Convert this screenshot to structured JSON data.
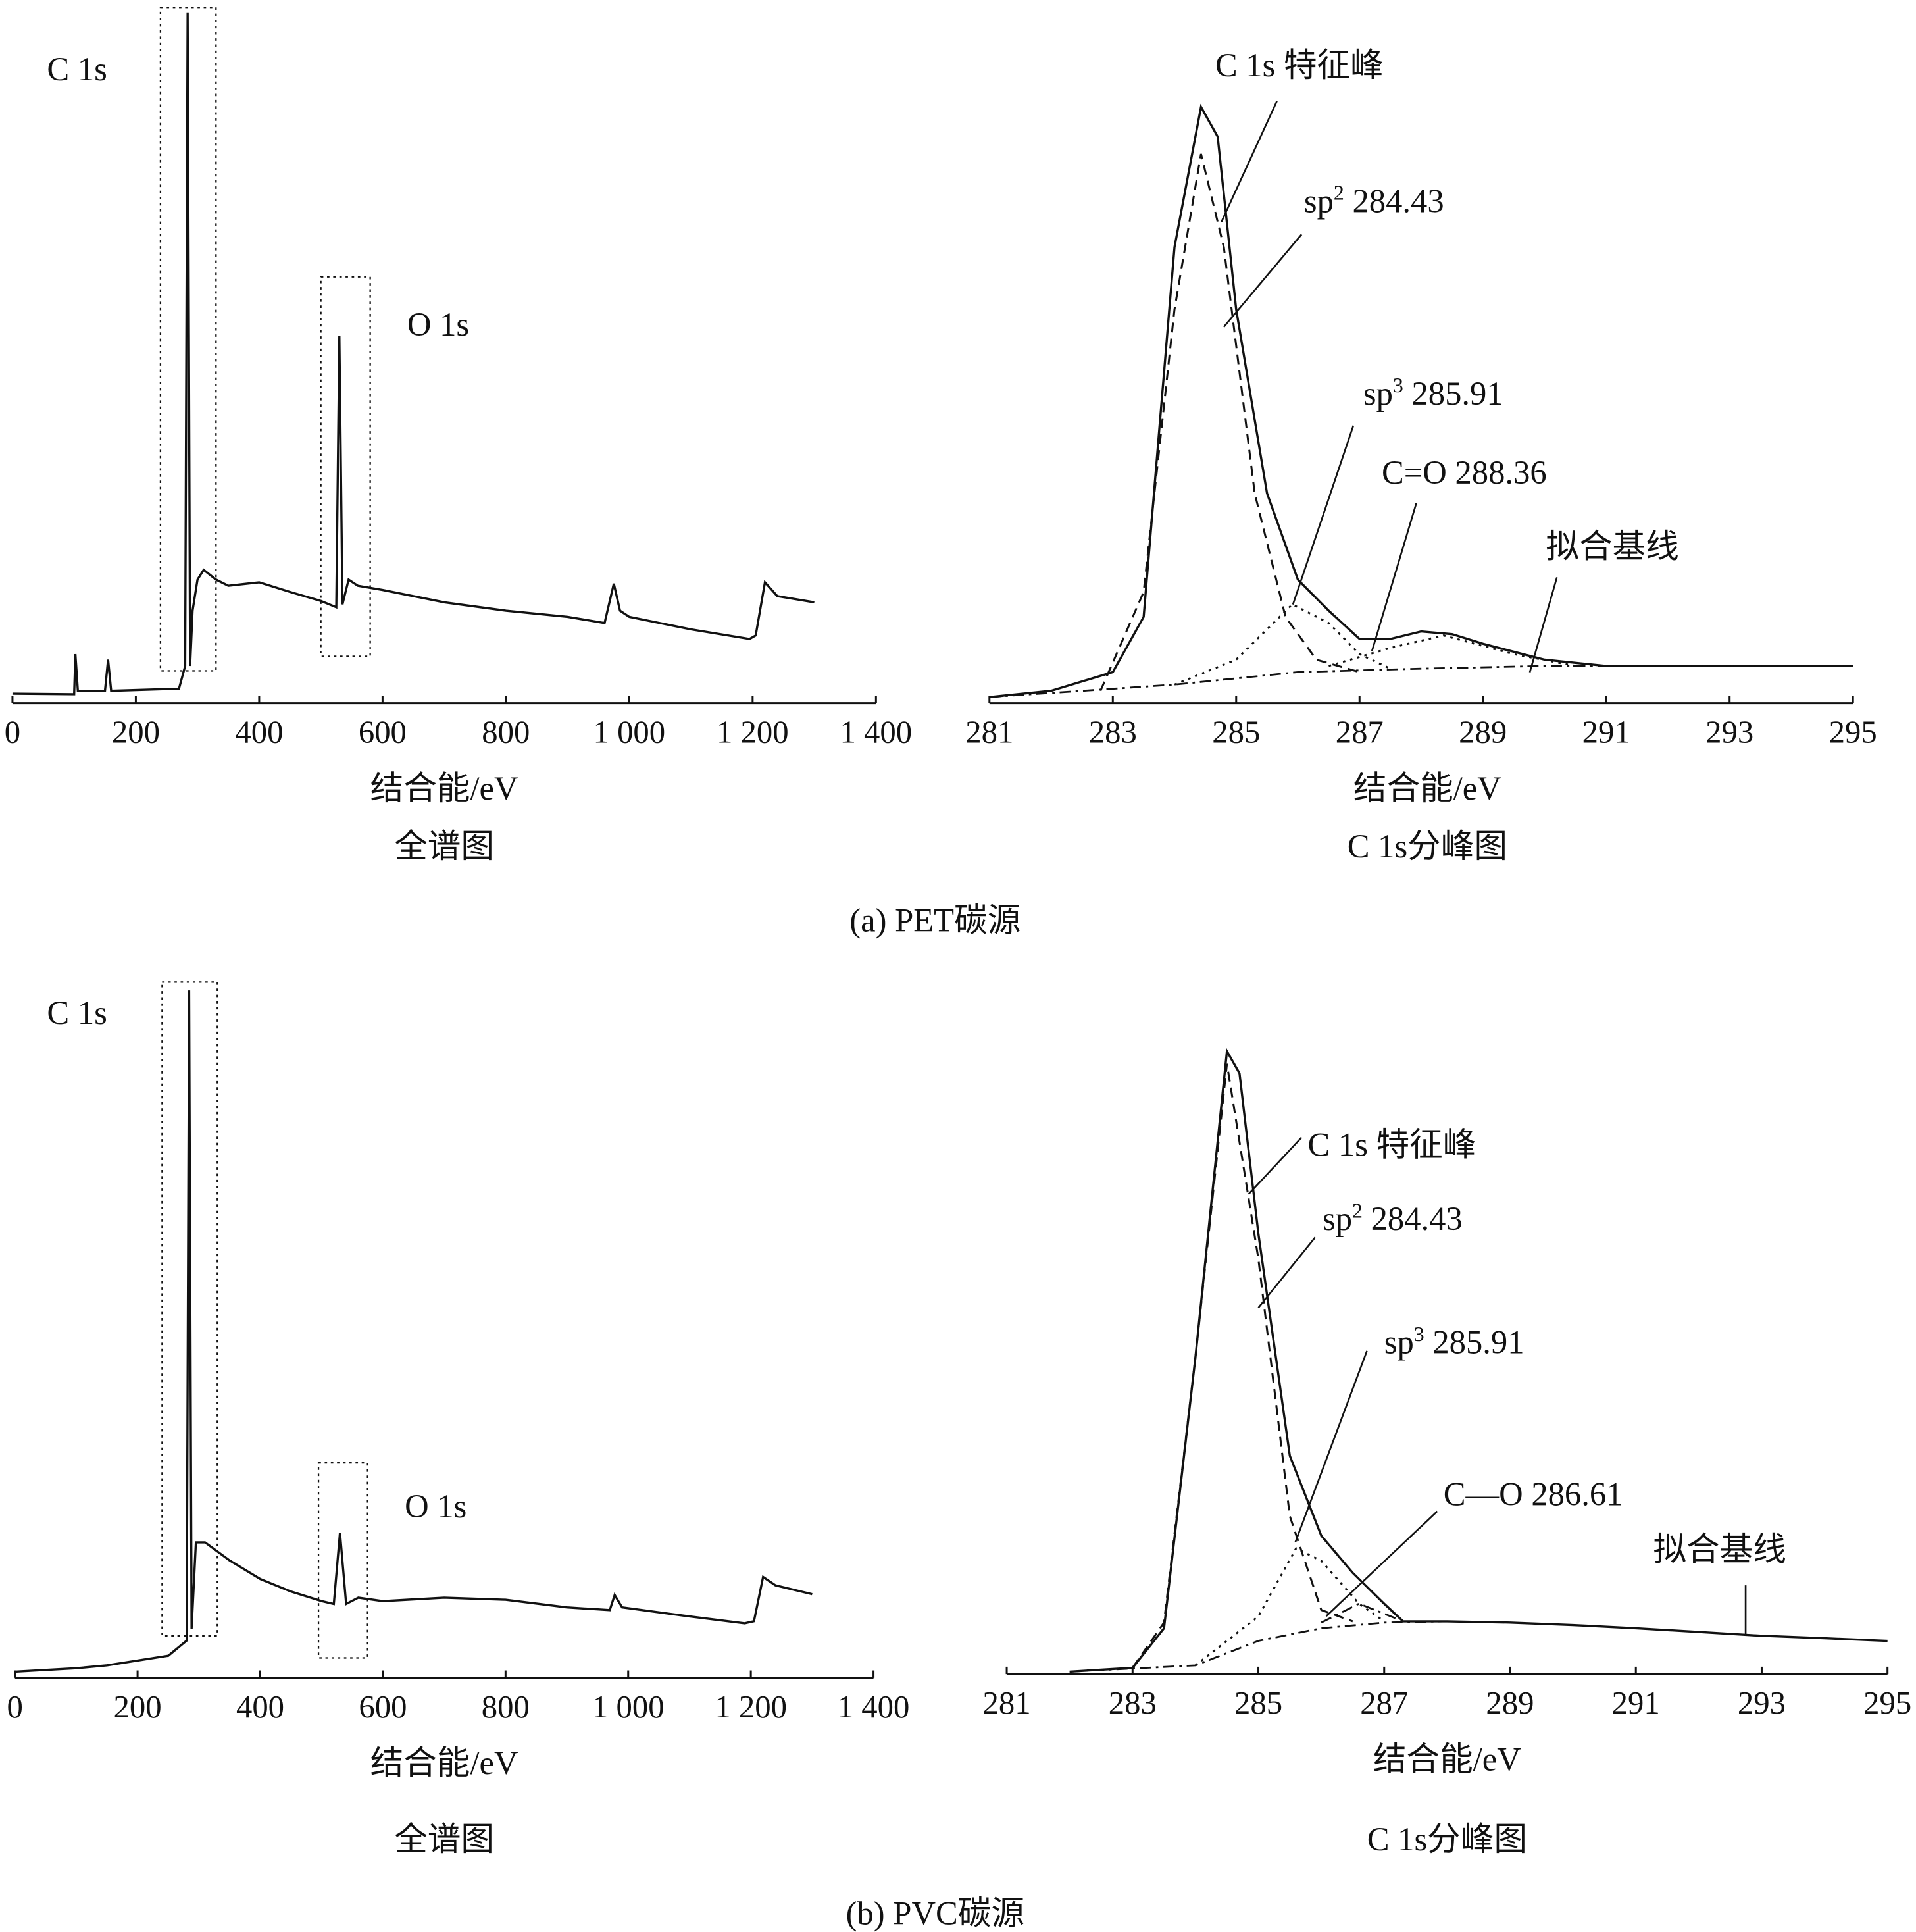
{
  "chart_data": [
    {
      "id": "a_survey",
      "type": "line",
      "title": "全谱图",
      "xlabel": "结合能/eV",
      "ylabel": "",
      "xlim": [
        0,
        1400
      ],
      "ylim": [
        0,
        100
      ],
      "xticks": [
        "0",
        "200",
        "400",
        "600",
        "800",
        "1 000",
        "1 200",
        "1 400"
      ],
      "xtick_values": [
        0,
        200,
        400,
        600,
        800,
        1000,
        1200,
        1400
      ],
      "highlight_ranges_eV": [
        {
          "label": "C 1s",
          "x": [
            240,
            330
          ],
          "y": [
            5.4,
            100
          ]
        },
        {
          "label": "O 1s",
          "x": [
            500,
            580
          ],
          "y": [
            7.5,
            61
          ]
        }
      ],
      "annotations": [
        {
          "text": "C 1s"
        },
        {
          "text": "O 1s"
        }
      ],
      "series": [
        {
          "name": "spectrum",
          "style": "solid",
          "x": [
            0,
            100,
            102,
            106,
            150,
            155,
            160,
            270,
            280,
            284,
            288,
            292,
            300,
            310,
            330,
            350,
            400,
            450,
            500,
            525,
            530,
            535,
            545,
            560,
            600,
            700,
            800,
            900,
            960,
            975,
            985,
            1000,
            1100,
            1195,
            1205,
            1220,
            1240,
            1300
          ],
          "y": [
            1.4,
            1.3,
            7.1,
            1.8,
            1.8,
            6.3,
            1.8,
            2.1,
            5.4,
            100,
            5.4,
            13.4,
            17.9,
            19.3,
            17.9,
            17,
            17.5,
            16.1,
            14.8,
            13.9,
            53.2,
            14.3,
            17.9,
            17,
            16.4,
            14.6,
            13.4,
            12.5,
            11.6,
            17.3,
            13.4,
            12.5,
            10.7,
            9.3,
            9.8,
            17.5,
            15.5,
            14.6
          ]
        }
      ]
    },
    {
      "id": "a_c1s",
      "type": "line",
      "title": "C 1s分峰图",
      "xlabel": "结合能/eV",
      "ylabel": "",
      "xlim": [
        281,
        295
      ],
      "ylim": [
        0,
        100
      ],
      "xticks": [
        "281",
        "283",
        "285",
        "287",
        "289",
        "291",
        "293",
        "295"
      ],
      "xtick_values": [
        281,
        283,
        285,
        287,
        289,
        291,
        293,
        295
      ],
      "annotations": [
        {
          "text": "C 1s  特征峰"
        },
        {
          "prefix": "sp",
          "sup": "2",
          "value": " 284.43"
        },
        {
          "prefix": "sp",
          "sup": "3",
          "value": " 285.91"
        },
        {
          "text": "C=O 288.36"
        },
        {
          "text": "拟合基线"
        }
      ],
      "series": [
        {
          "name": "C 1s 特征峰",
          "style": "solid",
          "x": [
            281,
            282,
            283,
            283.5,
            284,
            284.43,
            284.7,
            285,
            285.5,
            286,
            286.5,
            287,
            287.5,
            288,
            288.5,
            289,
            290,
            291,
            295
          ],
          "y": [
            0.9,
            1.8,
            4.5,
            12.5,
            66,
            86.3,
            82,
            57,
            30.4,
            17.9,
            13.4,
            9.3,
            9.3,
            10.4,
            10,
            8.6,
            6.3,
            5.4,
            5.4
          ]
        },
        {
          "name": "sp2 284.43",
          "style": "dash",
          "x": [
            282.8,
            283.5,
            284,
            284.43,
            284.8,
            285.3,
            285.8,
            286.3,
            287
          ],
          "y": [
            1.8,
            16.1,
            57,
            79.5,
            66,
            30.4,
            12.5,
            6.3,
            4.5
          ]
        },
        {
          "name": "sp3 285.91",
          "style": "dot",
          "x": [
            284,
            285,
            285.5,
            285.91,
            286.5,
            287,
            287.5
          ],
          "y": [
            2.7,
            6.3,
            10.7,
            14.3,
            11.6,
            7.1,
            5
          ]
        },
        {
          "name": "C=O 288.36",
          "style": "dot",
          "x": [
            286.5,
            287.5,
            288.36,
            289.5,
            290.5
          ],
          "y": [
            5.4,
            8,
            9.8,
            7.1,
            5.4
          ]
        },
        {
          "name": "拟合基线",
          "style": "dashdot",
          "x": [
            281,
            284,
            286,
            288,
            290,
            295
          ],
          "y": [
            0.9,
            2.7,
            4.5,
            5,
            5.4,
            5.4
          ]
        }
      ]
    },
    {
      "id": "b_survey",
      "type": "line",
      "title": "全谱图",
      "xlabel": "结合能/eV",
      "ylabel": "",
      "xlim": [
        0,
        1400
      ],
      "ylim": [
        0,
        100
      ],
      "xticks": [
        "0",
        "200",
        "400",
        "600",
        "800",
        "1 000",
        "1 200",
        "1 400"
      ],
      "xtick_values": [
        0,
        200,
        400,
        600,
        800,
        1000,
        1200,
        1400
      ],
      "highlight_ranges_eV": [
        {
          "label": "C 1s",
          "x": [
            240,
            330
          ],
          "y": [
            6.8,
            100
          ]
        },
        {
          "label": "O 1s",
          "x": [
            495,
            575
          ],
          "y": [
            3.6,
            30.4
          ]
        }
      ],
      "annotations": [
        {
          "text": "C 1s"
        },
        {
          "text": "O 1s"
        }
      ],
      "series": [
        {
          "name": "spectrum",
          "style": "solid",
          "x": [
            0,
            100,
            150,
            250,
            280,
            284,
            288,
            295,
            310,
            350,
            400,
            450,
            500,
            520,
            530,
            540,
            560,
            600,
            700,
            800,
            900,
            970,
            978,
            990,
            1100,
            1190,
            1205,
            1220,
            1240,
            1300
          ],
          "y": [
            0.9,
            1.4,
            1.8,
            3.2,
            5.4,
            99.5,
            7.1,
            19.6,
            19.6,
            17,
            14.3,
            12.5,
            11.1,
            10.7,
            21,
            10.7,
            11.6,
            11.1,
            11.6,
            11.3,
            10.2,
            9.8,
            12,
            10.2,
            8.9,
            7.9,
            8.2,
            14.6,
            13.4,
            12.1
          ]
        }
      ]
    },
    {
      "id": "b_c1s",
      "type": "line",
      "title": "C 1s分峰图",
      "xlabel": "结合能/eV",
      "ylabel": "",
      "xlim": [
        281,
        295
      ],
      "ylim": [
        0,
        100
      ],
      "xticks": [
        "281",
        "283",
        "285",
        "287",
        "289",
        "291",
        "293",
        "295"
      ],
      "xtick_values": [
        281,
        283,
        285,
        287,
        289,
        291,
        293,
        295
      ],
      "annotations": [
        {
          "text": "C 1s  特征峰"
        },
        {
          "prefix": "sp",
          "sup": "2",
          "value": " 284.43"
        },
        {
          "prefix": "sp",
          "sup": "3",
          "value": " 285.91"
        },
        {
          "text": "C—O 286.61"
        },
        {
          "text": "拟合基线"
        }
      ],
      "series": [
        {
          "name": "C 1s 特征峰",
          "style": "solid",
          "x": [
            282,
            283,
            283.5,
            284,
            284.5,
            284.7,
            285,
            285.5,
            286,
            286.5,
            287,
            287.3,
            288,
            289,
            290,
            291,
            292,
            293,
            294,
            295
          ],
          "y": [
            0.4,
            1,
            7.3,
            50.4,
            99,
            95.5,
            70,
            34.7,
            22,
            16.1,
            11.2,
            8.4,
            8.4,
            8.2,
            7.8,
            7.3,
            6.7,
            6.1,
            5.7,
            5.3
          ]
        },
        {
          "name": "sp2 284.43",
          "style": "dash",
          "x": [
            283,
            283.5,
            284,
            284.5,
            285,
            285.5,
            286,
            286.5
          ],
          "y": [
            1,
            8.2,
            50.4,
            97,
            66,
            25.1,
            10.2,
            8.4
          ]
        },
        {
          "name": "sp3 285.91",
          "style": "dot",
          "x": [
            284,
            285,
            285.6,
            286,
            286.6,
            287
          ],
          "y": [
            1.4,
            9.2,
            20,
            18,
            11.2,
            8.4
          ]
        },
        {
          "name": "C—O 286.61",
          "style": "dashdot",
          "x": [
            286,
            286.6,
            287.2
          ],
          "y": [
            8.2,
            11.2,
            8.8
          ]
        },
        {
          "name": "拟合基线",
          "style": "dashdot",
          "x": [
            282,
            284,
            285,
            286,
            287,
            288
          ],
          "y": [
            0.4,
            1.4,
            5.3,
            7.3,
            8.2,
            8.4
          ]
        }
      ]
    }
  ],
  "captions": {
    "a": "(a)  PET碳源",
    "b": "(b)  PVC碳源"
  }
}
